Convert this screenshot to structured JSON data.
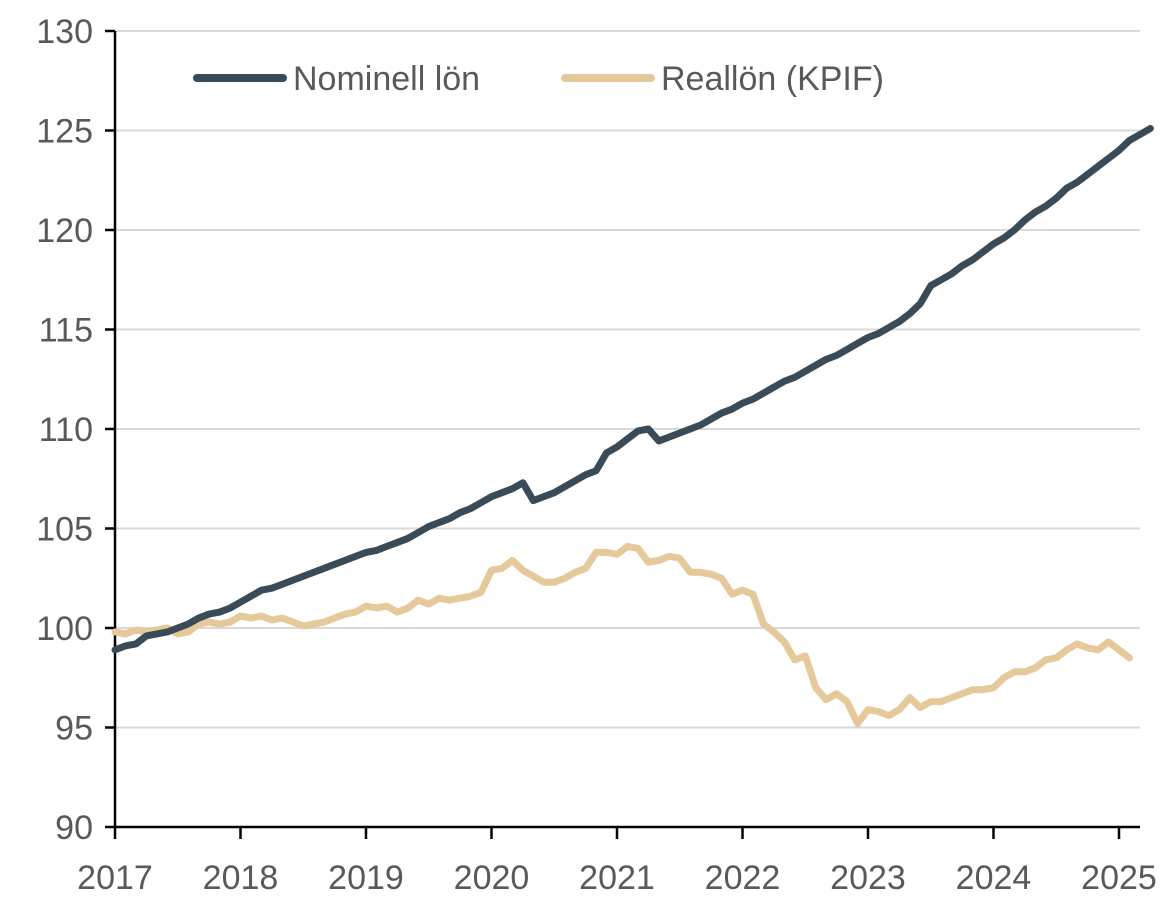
{
  "chart_data": {
    "type": "line",
    "title": "",
    "xlabel": "",
    "ylabel": "",
    "ylim": [
      90,
      130
    ],
    "y_ticks": [
      90,
      95,
      100,
      105,
      110,
      115,
      120,
      125,
      130
    ],
    "x_ticks": [
      "2017",
      "2018",
      "2019",
      "2020",
      "2021",
      "2022",
      "2023",
      "2024",
      "2025"
    ],
    "x_start": "2017-01",
    "grid": "horizontal",
    "legend_position": "top-left",
    "series": [
      {
        "name": "Nominell lön",
        "color": "#3a4b57",
        "values": [
          98.9,
          99.1,
          99.2,
          99.6,
          99.7,
          99.8,
          100.0,
          100.2,
          100.5,
          100.7,
          100.8,
          101.0,
          101.3,
          101.6,
          101.9,
          102.0,
          102.2,
          102.4,
          102.6,
          102.8,
          103.0,
          103.2,
          103.4,
          103.6,
          103.8,
          103.9,
          104.1,
          104.3,
          104.5,
          104.8,
          105.1,
          105.3,
          105.5,
          105.8,
          106.0,
          106.3,
          106.6,
          106.8,
          107.0,
          107.3,
          106.4,
          106.6,
          106.8,
          107.1,
          107.4,
          107.7,
          107.9,
          108.8,
          109.1,
          109.5,
          109.9,
          110.0,
          109.4,
          109.6,
          109.8,
          110.0,
          110.2,
          110.5,
          110.8,
          111.0,
          111.3,
          111.5,
          111.8,
          112.1,
          112.4,
          112.6,
          112.9,
          113.2,
          113.5,
          113.7,
          114.0,
          114.3,
          114.6,
          114.8,
          115.1,
          115.4,
          115.8,
          116.3,
          117.2,
          117.5,
          117.8,
          118.2,
          118.5,
          118.9,
          119.3,
          119.6,
          120.0,
          120.5,
          120.9,
          121.2,
          121.6,
          122.1,
          122.4,
          122.8,
          123.2,
          123.6,
          124.0,
          124.5,
          124.8,
          125.1
        ]
      },
      {
        "name": "Reallön (KPIF)",
        "color": "#e5c99b",
        "values": [
          99.8,
          99.7,
          99.9,
          99.8,
          99.9,
          100.0,
          99.7,
          99.8,
          100.2,
          100.3,
          100.2,
          100.3,
          100.6,
          100.5,
          100.6,
          100.4,
          100.5,
          100.3,
          100.1,
          100.2,
          100.3,
          100.5,
          100.7,
          100.8,
          101.1,
          101.0,
          101.1,
          100.8,
          101.0,
          101.4,
          101.2,
          101.5,
          101.4,
          101.5,
          101.6,
          101.8,
          102.9,
          103.0,
          103.4,
          102.9,
          102.6,
          102.3,
          102.3,
          102.5,
          102.8,
          103.0,
          103.8,
          103.8,
          103.7,
          104.1,
          104.0,
          103.3,
          103.4,
          103.6,
          103.5,
          102.8,
          102.8,
          102.7,
          102.5,
          101.7,
          101.9,
          101.7,
          100.2,
          99.8,
          99.3,
          98.4,
          98.6,
          97.0,
          96.4,
          96.7,
          96.3,
          95.2,
          95.9,
          95.8,
          95.6,
          95.9,
          96.5,
          96.0,
          96.3,
          96.3,
          96.5,
          96.7,
          96.9,
          96.9,
          97.0,
          97.5,
          97.8,
          97.8,
          98.0,
          98.4,
          98.5,
          98.9,
          99.2,
          99.0,
          98.9,
          99.3,
          98.9,
          98.5
        ]
      }
    ]
  }
}
